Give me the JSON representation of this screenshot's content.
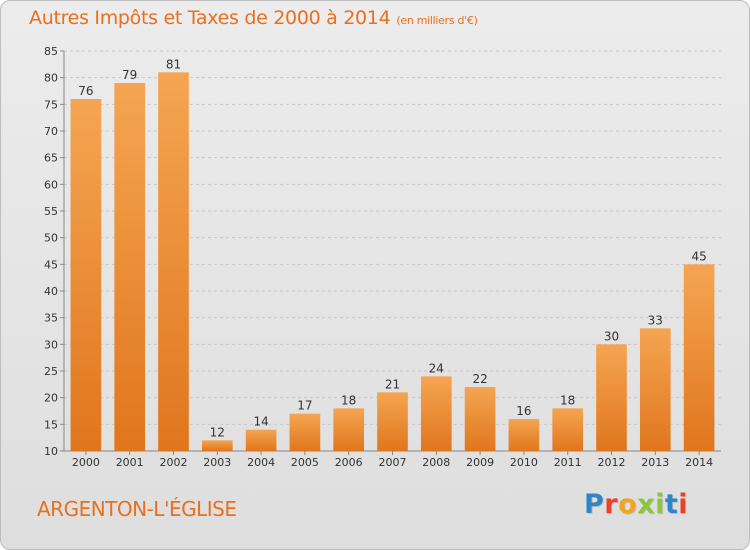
{
  "header": {
    "title": "Autres Impôts et Taxes de 2000 à 2014",
    "subtitle": "(en milliers d'€)"
  },
  "footer": {
    "location": "ARGENTON-L'ÉGLISE",
    "logo_text": "Proxiti",
    "logo_colors": [
      "#2e86c8",
      "#e8432a",
      "#f2a51d",
      "#8cc63f",
      "#8cc63f",
      "#2e86c8",
      "#e8432a"
    ]
  },
  "colors": {
    "bar_light": "#f5a552",
    "bar_dark": "#e0761d",
    "grid": "#c8c8c8",
    "axis": "#888888",
    "title": "#e8701e"
  },
  "chart_data": {
    "type": "bar",
    "categories": [
      "2000",
      "2001",
      "2002",
      "2003",
      "2004",
      "2005",
      "2006",
      "2007",
      "2008",
      "2009",
      "2010",
      "2011",
      "2012",
      "2013",
      "2014"
    ],
    "values": [
      76,
      79,
      81,
      12,
      14,
      17,
      18,
      21,
      24,
      22,
      16,
      18,
      30,
      33,
      45
    ],
    "title": "Autres Impôts et Taxes de 2000 à 2014",
    "subtitle": "(en milliers d'€)",
    "ylim": [
      10,
      85
    ],
    "yticks": [
      10,
      15,
      20,
      25,
      30,
      35,
      40,
      45,
      50,
      55,
      60,
      65,
      70,
      75,
      80,
      85
    ],
    "grid": true,
    "data_labels": true
  }
}
